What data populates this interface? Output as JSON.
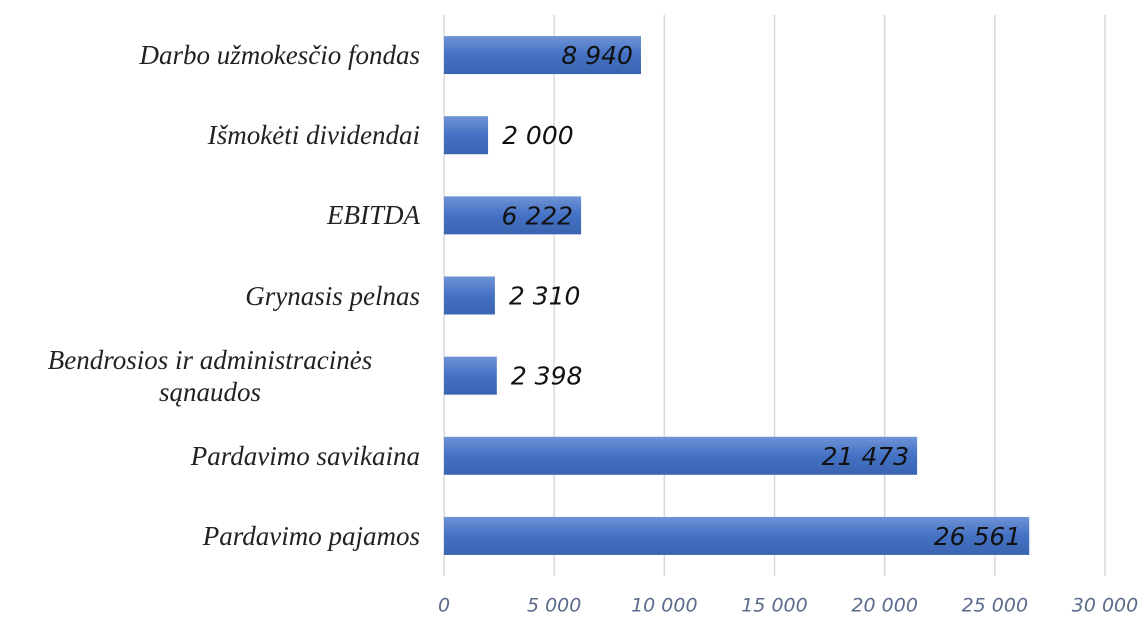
{
  "chart_data": {
    "type": "barh",
    "categories": [
      "Darbo užmokesčio fondas",
      "Išmokėti dividendai",
      "EBITDA",
      "Grynasis pelnas",
      "Bendrosios ir administracinės sąnaudos",
      "Pardavimo savikaina",
      "Pardavimo pajamos"
    ],
    "values": [
      8940,
      2000,
      6222,
      2310,
      2398,
      21473,
      26561
    ],
    "value_labels": [
      "8 940",
      "2 000",
      "6 222",
      "2 310",
      "2 398",
      "21 473",
      "26 561"
    ],
    "color": "#4472c4",
    "xlim": [
      0,
      30000
    ],
    "xticks": [
      0,
      {
        "value": 5000,
        "label": "5 000"
      },
      {
        "value": 10000,
        "label": "10 000"
      },
      {
        "value": 15000,
        "label": "15 000"
      },
      {
        "value": 20000,
        "label": "20 000"
      },
      {
        "value": 25000,
        "label": "25 000"
      },
      {
        "value": 30000,
        "label": "30 000"
      }
    ],
    "grid": true
  }
}
